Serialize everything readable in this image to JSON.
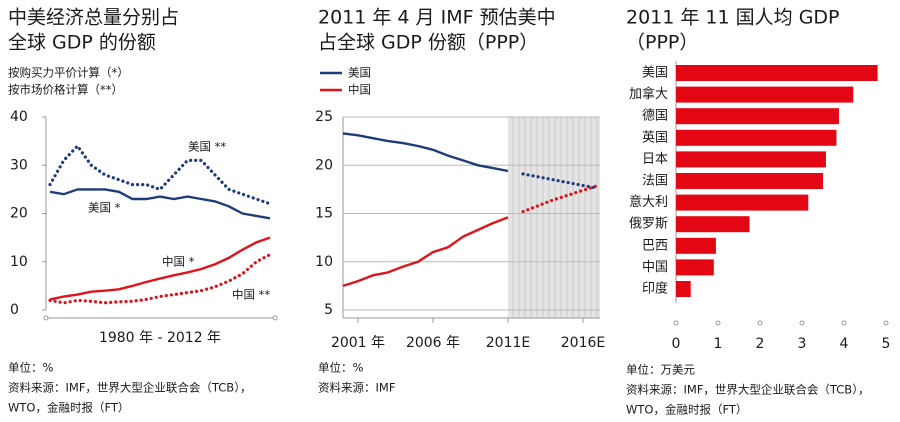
{
  "chart_data": [
    {
      "type": "line",
      "title": [
        "中美经济总量分别占",
        "全球 GDP 的份额"
      ],
      "annotations": [
        "按购买力平价计算（*）",
        "按市场价格计算（**）"
      ],
      "xlabel": "1980 年 - 2012 年",
      "ylim": [
        0,
        40
      ],
      "yticks": [
        0,
        10,
        20,
        30,
        40
      ],
      "grid": false,
      "series": [
        {
          "name": "美国 **",
          "color": "#1f3c7a",
          "style": "dotted",
          "values": [
            26,
            31,
            34,
            30,
            28,
            27,
            26,
            26,
            25,
            28,
            31,
            31,
            28,
            25,
            24,
            23,
            22
          ]
        },
        {
          "name": "美国 *",
          "color": "#1f3c7a",
          "style": "solid",
          "values": [
            24.5,
            24,
            25,
            25,
            25,
            24.5,
            23,
            23,
            23.5,
            23,
            23.5,
            23,
            22.5,
            21.5,
            20,
            19.5,
            19
          ]
        },
        {
          "name": "中国 *",
          "color": "#e0121b",
          "style": "solid",
          "values": [
            2.2,
            2.8,
            3.2,
            3.8,
            4,
            4.3,
            5,
            5.8,
            6.5,
            7.2,
            7.8,
            8.5,
            9.5,
            10.8,
            12.5,
            14,
            15
          ]
        },
        {
          "name": "中国 **",
          "color": "#e0121b",
          "style": "dotted",
          "values": [
            2,
            1.5,
            2,
            1.8,
            1.5,
            1.7,
            1.8,
            2.2,
            2.8,
            3.2,
            3.6,
            4,
            4.8,
            6,
            7.5,
            10,
            11.5
          ]
        }
      ],
      "notes": [
        "单位：%",
        "资料来源：IMF，世界大型企业联合会（TCB），",
        "WTO，金融时报（FT）"
      ]
    },
    {
      "type": "line",
      "title": [
        "2011 年 4 月 IMF 预估美中",
        "占全球 GDP 份额（PPP）"
      ],
      "categories": [
        null,
        "2001 年",
        null,
        null,
        null,
        null,
        "2006 年",
        null,
        null,
        null,
        null,
        "2011E",
        null,
        null,
        null,
        null,
        "2016E",
        null
      ],
      "ylim": [
        5,
        25
      ],
      "yticks": [
        5,
        10,
        15,
        20,
        25
      ],
      "grid": true,
      "series": [
        {
          "name": "美国",
          "color": "#1f3c7a",
          "values": [
            23.3,
            23.1,
            22.8,
            22.5,
            22.3,
            22.0,
            21.6,
            21.0,
            20.5,
            20.0,
            19.7,
            19.4,
            19.1,
            18.8,
            18.5,
            18.2,
            17.9,
            17.6
          ]
        },
        {
          "name": "中国",
          "color": "#e0121b",
          "values": [
            7.5,
            8.0,
            8.6,
            8.9,
            9.5,
            10.0,
            11.0,
            11.5,
            12.6,
            13.3,
            14.0,
            14.6,
            15.2,
            15.8,
            16.4,
            16.9,
            17.4,
            17.9
          ]
        }
      ],
      "notes": [
        "单位：%",
        "资料来源：IMF"
      ]
    },
    {
      "type": "barh",
      "title": [
        "2011 年 11 国人均 GDP",
        "（PPP）"
      ],
      "categories": [
        "美国",
        "加拿大",
        "德国",
        "英国",
        "日本",
        "法国",
        "意大利",
        "俄罗斯",
        "巴西",
        "中国",
        "印度"
      ],
      "values": [
        4.8,
        4.22,
        3.88,
        3.82,
        3.57,
        3.5,
        3.15,
        1.75,
        0.95,
        0.9,
        0.35
      ],
      "color": "#e30613",
      "xlim": [
        0,
        5
      ],
      "xticks": [
        0,
        1,
        2,
        3,
        4,
        5
      ],
      "notes": [
        "单位：万美元",
        "资料来源：IMF，世界大型企业联合会（TCB），",
        "WTO，金融时报（FT）"
      ]
    }
  ]
}
